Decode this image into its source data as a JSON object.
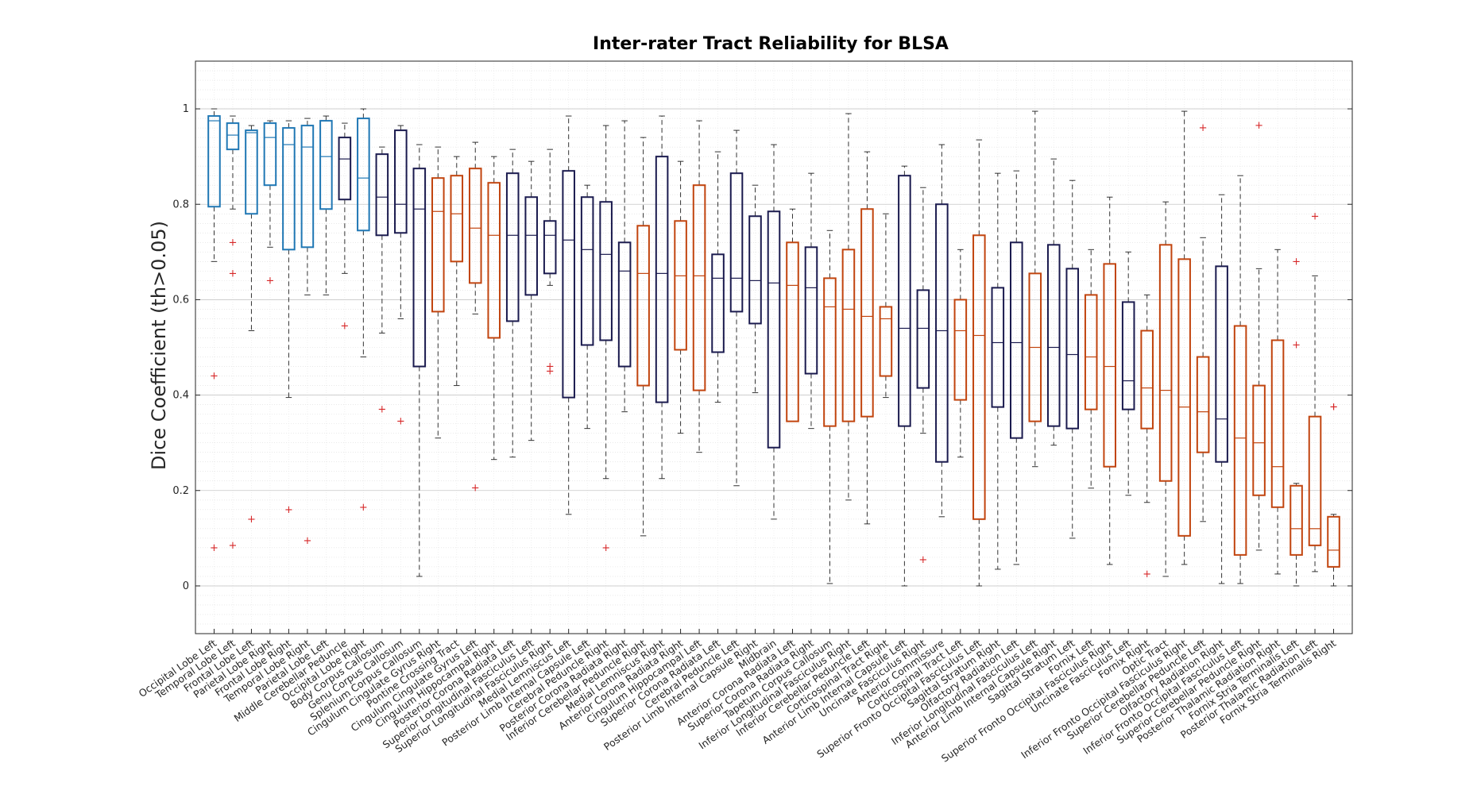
{
  "chart_data": {
    "type": "box",
    "title": "Inter-rater Tract Reliability for BLSA",
    "xlabel": "",
    "ylabel": "Dice Coefficient (th>0.05)",
    "ylim": [
      -0.1,
      1.1
    ],
    "yticks": [
      0,
      0.2,
      0.4,
      0.6,
      0.8,
      1
    ],
    "ytick_labels": [
      "0",
      "0.2",
      "0.4",
      "0.6",
      "0.8",
      "1"
    ],
    "grid": true,
    "colors": {
      "blue": "#1f77b4",
      "navy": "#1a1a4e",
      "orange": "#c1440e",
      "outlier": "#d62728",
      "whisker": "#333333"
    },
    "categories": [
      {
        "name": "Occipital Lobe Left",
        "color": "blue",
        "min": 0.68,
        "q1": 0.795,
        "median": 0.975,
        "q3": 0.985,
        "max": 1.0,
        "outliers": [
          0.44,
          0.08
        ]
      },
      {
        "name": "Temporal Lobe Left",
        "color": "blue",
        "min": 0.79,
        "q1": 0.915,
        "median": 0.945,
        "q3": 0.97,
        "max": 0.985,
        "outliers": [
          0.72,
          0.655,
          0.085
        ]
      },
      {
        "name": "Frontal Lobe Left",
        "color": "blue",
        "min": 0.535,
        "q1": 0.78,
        "median": 0.95,
        "q3": 0.955,
        "max": 0.965,
        "outliers": [
          0.14
        ]
      },
      {
        "name": "Parietal Lobe Right",
        "color": "blue",
        "min": 0.71,
        "q1": 0.84,
        "median": 0.94,
        "q3": 0.97,
        "max": 0.975,
        "outliers": [
          0.64
        ]
      },
      {
        "name": "Frontal Lobe Right",
        "color": "blue",
        "min": 0.395,
        "q1": 0.705,
        "median": 0.925,
        "q3": 0.96,
        "max": 0.975,
        "outliers": [
          0.16
        ]
      },
      {
        "name": "Temporal Lobe Right",
        "color": "blue",
        "min": 0.61,
        "q1": 0.71,
        "median": 0.92,
        "q3": 0.965,
        "max": 0.98,
        "outliers": [
          0.095
        ]
      },
      {
        "name": "Parietal Lobe Left",
        "color": "blue",
        "min": 0.61,
        "q1": 0.79,
        "median": 0.9,
        "q3": 0.975,
        "max": 0.985,
        "outliers": []
      },
      {
        "name": "Middle Cerebellar Peduncle",
        "color": "navy",
        "min": 0.655,
        "q1": 0.81,
        "median": 0.895,
        "q3": 0.94,
        "max": 0.97,
        "outliers": [
          0.545
        ]
      },
      {
        "name": "Occipital Lobe Right",
        "color": "blue",
        "min": 0.48,
        "q1": 0.745,
        "median": 0.855,
        "q3": 0.98,
        "max": 1.0,
        "outliers": [
          0.165
        ]
      },
      {
        "name": "Body Corpus Callosum",
        "color": "navy",
        "min": 0.53,
        "q1": 0.735,
        "median": 0.815,
        "q3": 0.905,
        "max": 0.92,
        "outliers": [
          0.37
        ]
      },
      {
        "name": "Genu Corpus Callosum",
        "color": "navy",
        "min": 0.56,
        "q1": 0.74,
        "median": 0.8,
        "q3": 0.955,
        "max": 0.965,
        "outliers": [
          0.345
        ]
      },
      {
        "name": "Splenium Corpus Callosum",
        "color": "navy",
        "min": 0.02,
        "q1": 0.46,
        "median": 0.79,
        "q3": 0.875,
        "max": 0.925,
        "outliers": []
      },
      {
        "name": "Cingulum Cingulate Gyrus Right",
        "color": "orange",
        "min": 0.31,
        "q1": 0.575,
        "median": 0.785,
        "q3": 0.855,
        "max": 0.92,
        "outliers": []
      },
      {
        "name": "Pontine Crossing Tract",
        "color": "orange",
        "min": 0.42,
        "q1": 0.68,
        "median": 0.78,
        "q3": 0.86,
        "max": 0.9,
        "outliers": []
      },
      {
        "name": "Cingulum Cingulate Gyrus Left",
        "color": "orange",
        "min": 0.57,
        "q1": 0.635,
        "median": 0.75,
        "q3": 0.875,
        "max": 0.93,
        "outliers": [
          0.205
        ]
      },
      {
        "name": "Cingulum Hippocampal Right",
        "color": "orange",
        "min": 0.265,
        "q1": 0.52,
        "median": 0.735,
        "q3": 0.845,
        "max": 0.9,
        "outliers": []
      },
      {
        "name": "Posterior Corona Radiata Left",
        "color": "navy",
        "min": 0.27,
        "q1": 0.555,
        "median": 0.735,
        "q3": 0.865,
        "max": 0.915,
        "outliers": []
      },
      {
        "name": "Superior Longitudinal Fasciculus Left",
        "color": "navy",
        "min": 0.305,
        "q1": 0.61,
        "median": 0.735,
        "q3": 0.815,
        "max": 0.89,
        "outliers": []
      },
      {
        "name": "Superior Longitudinal Fasciculus Right",
        "color": "navy",
        "min": 0.63,
        "q1": 0.655,
        "median": 0.735,
        "q3": 0.765,
        "max": 0.915,
        "outliers": [
          0.46,
          0.45
        ]
      },
      {
        "name": "Medial Lemniscus Left",
        "color": "navy",
        "min": 0.15,
        "q1": 0.395,
        "median": 0.725,
        "q3": 0.87,
        "max": 0.985,
        "outliers": []
      },
      {
        "name": "Posterior Limb Internal Capsule Left",
        "color": "navy",
        "min": 0.33,
        "q1": 0.505,
        "median": 0.705,
        "q3": 0.815,
        "max": 0.84,
        "outliers": []
      },
      {
        "name": "Cerebral Peduncle Right",
        "color": "navy",
        "min": 0.225,
        "q1": 0.515,
        "median": 0.695,
        "q3": 0.805,
        "max": 0.965,
        "outliers": [
          0.08
        ]
      },
      {
        "name": "Posterior Corona Radiata Right",
        "color": "navy",
        "min": 0.365,
        "q1": 0.46,
        "median": 0.66,
        "q3": 0.72,
        "max": 0.975,
        "outliers": []
      },
      {
        "name": "Inferior Cerebellar Peduncle Right",
        "color": "orange",
        "min": 0.105,
        "q1": 0.42,
        "median": 0.655,
        "q3": 0.755,
        "max": 0.94,
        "outliers": []
      },
      {
        "name": "Medial Lemniscus Right",
        "color": "navy",
        "min": 0.225,
        "q1": 0.385,
        "median": 0.655,
        "q3": 0.9,
        "max": 0.985,
        "outliers": []
      },
      {
        "name": "Anterior Corona Radiata Right",
        "color": "orange",
        "min": 0.32,
        "q1": 0.495,
        "median": 0.65,
        "q3": 0.765,
        "max": 0.89,
        "outliers": []
      },
      {
        "name": "Cingulum Hippocampal Left",
        "color": "orange",
        "min": 0.28,
        "q1": 0.41,
        "median": 0.65,
        "q3": 0.84,
        "max": 0.975,
        "outliers": []
      },
      {
        "name": "Superior Corona Radiata Left",
        "color": "navy",
        "min": 0.385,
        "q1": 0.49,
        "median": 0.645,
        "q3": 0.695,
        "max": 0.91,
        "outliers": []
      },
      {
        "name": "Cerebral Peduncle Left",
        "color": "navy",
        "min": 0.21,
        "q1": 0.575,
        "median": 0.645,
        "q3": 0.865,
        "max": 0.955,
        "outliers": []
      },
      {
        "name": "Posterior Limb Internal Capsule Right",
        "color": "navy",
        "min": 0.405,
        "q1": 0.55,
        "median": 0.64,
        "q3": 0.775,
        "max": 0.84,
        "outliers": []
      },
      {
        "name": "Midbrain",
        "color": "navy",
        "min": 0.14,
        "q1": 0.29,
        "median": 0.635,
        "q3": 0.785,
        "max": 0.925,
        "outliers": []
      },
      {
        "name": "Anterior Corona Radiata Left",
        "color": "orange",
        "min": 0.345,
        "q1": 0.345,
        "median": 0.63,
        "q3": 0.72,
        "max": 0.79,
        "outliers": []
      },
      {
        "name": "Superior Corona Radiata Right",
        "color": "navy",
        "min": 0.33,
        "q1": 0.445,
        "median": 0.625,
        "q3": 0.71,
        "max": 0.865,
        "outliers": []
      },
      {
        "name": "Tapetum Corpus Callosum",
        "color": "orange",
        "min": 0.005,
        "q1": 0.335,
        "median": 0.585,
        "q3": 0.645,
        "max": 0.745,
        "outliers": []
      },
      {
        "name": "Inferior Longitudinal Fasciculus Right",
        "color": "orange",
        "min": 0.18,
        "q1": 0.345,
        "median": 0.58,
        "q3": 0.705,
        "max": 0.99,
        "outliers": []
      },
      {
        "name": "Inferior Cerebellar Peduncle Left",
        "color": "orange",
        "min": 0.13,
        "q1": 0.355,
        "median": 0.565,
        "q3": 0.79,
        "max": 0.91,
        "outliers": []
      },
      {
        "name": "Corticospinal Tract Right",
        "color": "orange",
        "min": 0.395,
        "q1": 0.44,
        "median": 0.56,
        "q3": 0.585,
        "max": 0.78,
        "outliers": []
      },
      {
        "name": "Anterior Limb Internal Capsule Left",
        "color": "navy",
        "min": 0.0,
        "q1": 0.335,
        "median": 0.54,
        "q3": 0.86,
        "max": 0.88,
        "outliers": []
      },
      {
        "name": "Uncinate Fasciculus Right",
        "color": "navy",
        "min": 0.32,
        "q1": 0.415,
        "median": 0.54,
        "q3": 0.62,
        "max": 0.835,
        "outliers": [
          0.055
        ]
      },
      {
        "name": "Anterior Commissure",
        "color": "navy",
        "min": 0.145,
        "q1": 0.26,
        "median": 0.535,
        "q3": 0.8,
        "max": 0.925,
        "outliers": []
      },
      {
        "name": "Corticospinal Tract Left",
        "color": "orange",
        "min": 0.27,
        "q1": 0.39,
        "median": 0.535,
        "q3": 0.6,
        "max": 0.705,
        "outliers": []
      },
      {
        "name": "Superior Fronto Occipital Fasciculus Left",
        "color": "orange",
        "min": 0.0,
        "q1": 0.14,
        "median": 0.525,
        "q3": 0.735,
        "max": 0.935,
        "outliers": []
      },
      {
        "name": "Sagittal Stratum Right",
        "color": "navy",
        "min": 0.035,
        "q1": 0.375,
        "median": 0.51,
        "q3": 0.625,
        "max": 0.865,
        "outliers": []
      },
      {
        "name": "Olfactory Radiation Left",
        "color": "navy",
        "min": 0.045,
        "q1": 0.31,
        "median": 0.51,
        "q3": 0.72,
        "max": 0.87,
        "outliers": []
      },
      {
        "name": "Inferior Longitudinal Fasciculus Left",
        "color": "orange",
        "min": 0.25,
        "q1": 0.345,
        "median": 0.5,
        "q3": 0.655,
        "max": 0.995,
        "outliers": []
      },
      {
        "name": "Anterior Limb Internal Capsule Right",
        "color": "navy",
        "min": 0.295,
        "q1": 0.335,
        "median": 0.5,
        "q3": 0.715,
        "max": 0.895,
        "outliers": []
      },
      {
        "name": "Sagittal Stratum Left",
        "color": "navy",
        "min": 0.1,
        "q1": 0.33,
        "median": 0.485,
        "q3": 0.665,
        "max": 0.85,
        "outliers": []
      },
      {
        "name": "Fornix Left",
        "color": "orange",
        "min": 0.205,
        "q1": 0.37,
        "median": 0.48,
        "q3": 0.61,
        "max": 0.705,
        "outliers": []
      },
      {
        "name": "Superior Fronto Occipital Fasciculus Right",
        "color": "orange",
        "min": 0.045,
        "q1": 0.25,
        "median": 0.46,
        "q3": 0.675,
        "max": 0.815,
        "outliers": []
      },
      {
        "name": "Uncinate Fasciculus Left",
        "color": "navy",
        "min": 0.19,
        "q1": 0.37,
        "median": 0.43,
        "q3": 0.595,
        "max": 0.7,
        "outliers": []
      },
      {
        "name": "Fornix Right",
        "color": "orange",
        "min": 0.175,
        "q1": 0.33,
        "median": 0.415,
        "q3": 0.535,
        "max": 0.61,
        "outliers": [
          0.025
        ]
      },
      {
        "name": "Optic Tract",
        "color": "orange",
        "min": 0.02,
        "q1": 0.22,
        "median": 0.41,
        "q3": 0.715,
        "max": 0.805,
        "outliers": []
      },
      {
        "name": "Inferior Fronto Occipital Fasciculus Right",
        "color": "orange",
        "min": 0.045,
        "q1": 0.105,
        "median": 0.375,
        "q3": 0.685,
        "max": 0.995,
        "outliers": []
      },
      {
        "name": "Superior Cerebellar Peduncle Left",
        "color": "orange",
        "min": 0.135,
        "q1": 0.28,
        "median": 0.365,
        "q3": 0.48,
        "max": 0.73,
        "outliers": [
          0.96
        ]
      },
      {
        "name": "Olfactory Radiation Right",
        "color": "navy",
        "min": 0.005,
        "q1": 0.26,
        "median": 0.35,
        "q3": 0.67,
        "max": 0.82,
        "outliers": []
      },
      {
        "name": "Inferior Fronto Occipital Fasciculus Left",
        "color": "orange",
        "min": 0.005,
        "q1": 0.065,
        "median": 0.31,
        "q3": 0.545,
        "max": 0.86,
        "outliers": []
      },
      {
        "name": "Superior Cerebellar Peduncle Right",
        "color": "orange",
        "min": 0.075,
        "q1": 0.19,
        "median": 0.3,
        "q3": 0.42,
        "max": 0.665,
        "outliers": [
          0.965
        ]
      },
      {
        "name": "Posterior Thalamic Radiation Right",
        "color": "orange",
        "min": 0.025,
        "q1": 0.165,
        "median": 0.25,
        "q3": 0.515,
        "max": 0.705,
        "outliers": []
      },
      {
        "name": "Fornix Stria Terminalis Left",
        "color": "orange",
        "min": 0.0,
        "q1": 0.065,
        "median": 0.12,
        "q3": 0.21,
        "max": 0.215,
        "outliers": [
          0.68,
          0.505
        ]
      },
      {
        "name": "Posterior Thalamic Radiation Left",
        "color": "orange",
        "min": 0.03,
        "q1": 0.085,
        "median": 0.12,
        "q3": 0.355,
        "max": 0.65,
        "outliers": [
          0.775
        ]
      },
      {
        "name": "Fornix Stria Terminalis Right",
        "color": "orange",
        "min": 0.0,
        "q1": 0.04,
        "median": 0.075,
        "q3": 0.145,
        "max": 0.15,
        "outliers": [
          0.375,
          0.375
        ]
      }
    ]
  }
}
